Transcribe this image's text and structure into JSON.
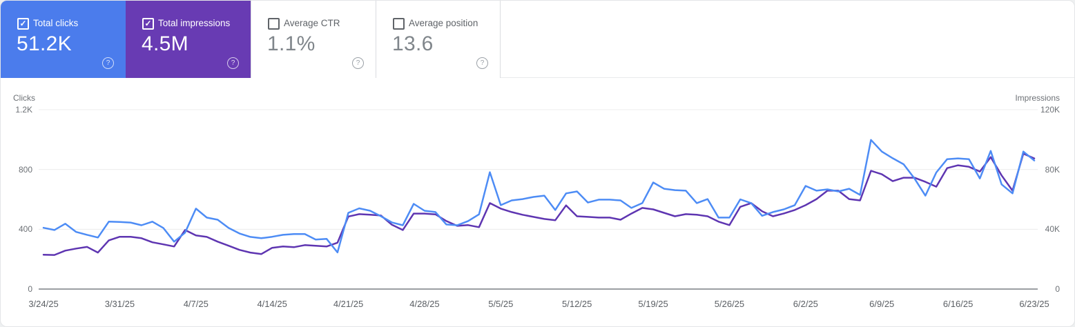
{
  "cards": [
    {
      "label": "Total clicks",
      "value": "51.2K",
      "checked": true,
      "bg": "#4b7cec",
      "text_color": "#ffffff"
    },
    {
      "label": "Total impressions",
      "value": "4.5M",
      "checked": true,
      "bg": "#683bb3",
      "text_color": "#ffffff"
    },
    {
      "label": "Average CTR",
      "value": "1.1%",
      "checked": false
    },
    {
      "label": "Average position",
      "value": "13.6",
      "checked": false
    }
  ],
  "icons": {
    "check_glyph": "✓",
    "help_glyph": "?"
  },
  "chart_data": {
    "type": "line",
    "grid": "horizontal",
    "left_axis": {
      "title": "Clicks",
      "tick_labels": [
        "1.2K",
        "800",
        "400",
        "0"
      ],
      "tick_values": [
        1200,
        800,
        400,
        0
      ],
      "max": 1200
    },
    "right_axis": {
      "title": "Impressions",
      "tick_labels": [
        "120K",
        "80K",
        "40K",
        "0"
      ],
      "tick_values": [
        120000,
        80000,
        40000,
        0
      ],
      "max": 120000
    },
    "x_tick_labels": [
      "3/24/25",
      "3/31/25",
      "4/7/25",
      "4/14/25",
      "4/21/25",
      "4/28/25",
      "5/5/25",
      "5/12/25",
      "5/19/25",
      "5/26/25",
      "6/2/25",
      "6/9/25",
      "6/16/25",
      "6/23/25"
    ],
    "x_start": "3/24/25",
    "x_end": "6/23/25",
    "points_per_series": 92,
    "interval": "daily",
    "series": [
      {
        "name": "Total clicks",
        "axis": "left",
        "color": "#4d8cf5",
        "values": [
          410,
          395,
          437,
          382,
          363,
          345,
          451,
          449,
          445,
          427,
          451,
          409,
          317,
          377,
          538,
          478,
          464,
          409,
          372,
          349,
          340,
          350,
          363,
          368,
          368,
          331,
          336,
          245,
          510,
          540,
          524,
          487,
          446,
          427,
          570,
          524,
          515,
          432,
          427,
          455,
          500,
          782,
          561,
          593,
          602,
          616,
          625,
          529,
          640,
          653,
          579,
          598,
          598,
          593,
          543,
          575,
          713,
          671,
          662,
          658,
          575,
          602,
          478,
          478,
          600,
          575,
          490,
          515,
          533,
          561,
          690,
          658,
          667,
          653,
          671,
          630,
          998,
          920,
          875,
          835,
          740,
          625,
          780,
          869,
          874,
          869,
          740,
          924,
          700,
          640,
          920,
          860
        ]
      },
      {
        "name": "Total impressions",
        "axis": "right",
        "color": "#5e35b1",
        "values": [
          23000,
          22800,
          25700,
          27100,
          28200,
          24400,
          32600,
          35000,
          35000,
          34000,
          31300,
          29900,
          28500,
          39500,
          35900,
          34900,
          31700,
          29000,
          26200,
          24400,
          23400,
          27600,
          28500,
          28000,
          29400,
          29000,
          28500,
          31000,
          48500,
          50100,
          49700,
          49200,
          43000,
          39500,
          50500,
          50500,
          50000,
          45500,
          42300,
          42800,
          41400,
          57500,
          53800,
          51500,
          49700,
          48300,
          46900,
          46000,
          56000,
          48700,
          48300,
          47800,
          47800,
          46400,
          50500,
          54300,
          53300,
          51000,
          48700,
          50100,
          49700,
          48700,
          45100,
          42800,
          55000,
          57500,
          52000,
          48700,
          50600,
          52900,
          56100,
          60200,
          65800,
          65800,
          60200,
          59300,
          79100,
          76800,
          72200,
          74500,
          74500,
          71700,
          68500,
          80900,
          82800,
          81800,
          78600,
          88300,
          76000,
          65800,
          90600,
          87400
        ]
      }
    ],
    "gridline_color": "#ececec",
    "axis_line_color": "#9b9ea2"
  }
}
